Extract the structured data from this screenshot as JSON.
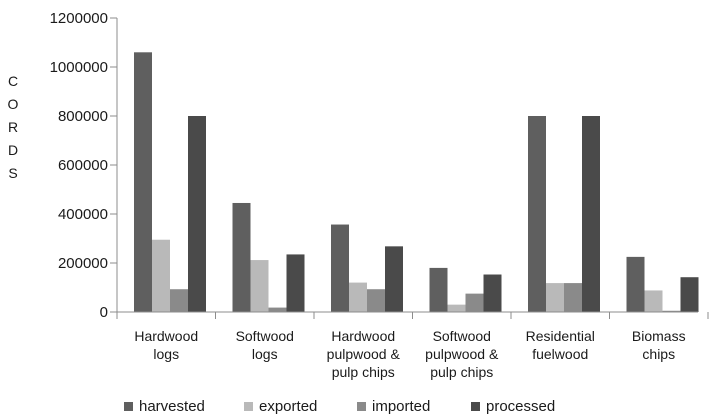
{
  "chart_data": {
    "type": "bar",
    "title": "",
    "xlabel": "",
    "ylabel": "CORDS",
    "ylim": [
      0,
      1200000
    ],
    "yticks": [
      0,
      200000,
      400000,
      600000,
      800000,
      1000000,
      1200000
    ],
    "tick_labels": [
      "0",
      "200000",
      "400000",
      "600000",
      "800000",
      "1000000",
      "1200000"
    ],
    "grid": false,
    "legend_position": "bottom",
    "categories": [
      [
        "Hardwood",
        "logs"
      ],
      [
        "Softwood",
        "logs"
      ],
      [
        "Hardwood",
        "pulpwood &",
        "pulp chips"
      ],
      [
        "Softwood",
        "pulpwood &",
        "pulp chips"
      ],
      [
        "Residential",
        "fuelwood"
      ],
      [
        "Biomass",
        "chips"
      ]
    ],
    "series": [
      {
        "name": "harvested",
        "color": "#5f5f5f",
        "values": [
          1060000,
          445000,
          357000,
          180000,
          800000,
          225000
        ]
      },
      {
        "name": "exported",
        "color": "#b9b9b9",
        "values": [
          295000,
          212000,
          120000,
          30000,
          118000,
          88000
        ]
      },
      {
        "name": "imported",
        "color": "#8a8a8a",
        "values": [
          93000,
          18000,
          93000,
          75000,
          118000,
          5000
        ]
      },
      {
        "name": "processed",
        "color": "#4a4a4a",
        "values": [
          800000,
          235000,
          268000,
          153000,
          800000,
          142000
        ]
      }
    ]
  }
}
